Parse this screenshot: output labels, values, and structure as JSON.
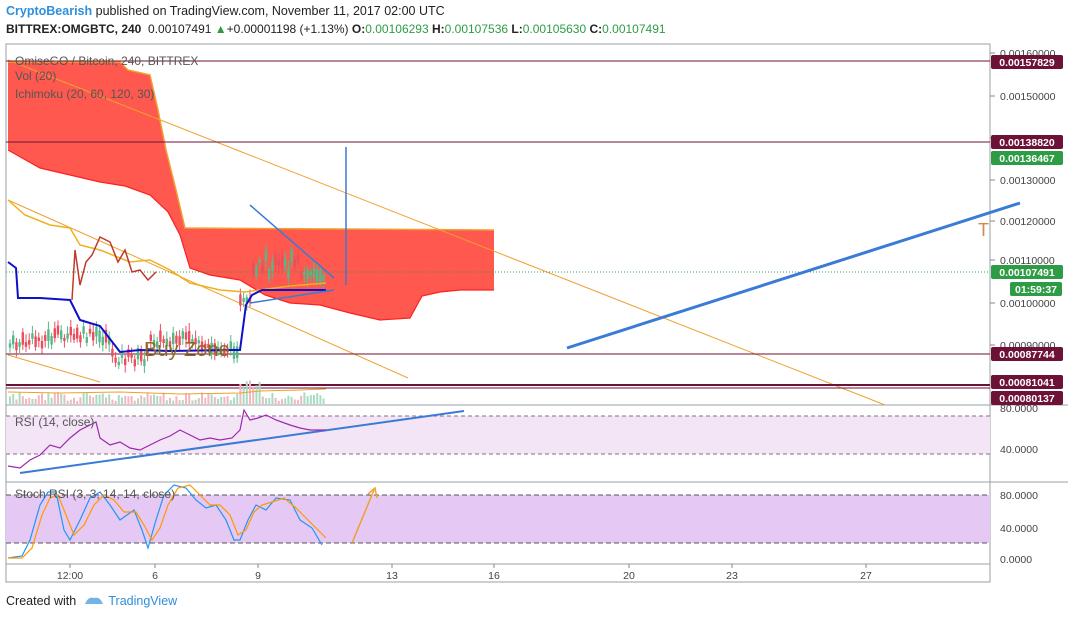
{
  "header": {
    "author": "CryptoBearish",
    "published_text": "published on TradingView.com, November 11, 2017 02:00 UTC",
    "symbol": "BITTREX:OMGBTC, 240",
    "last": "0.00107491",
    "change": "+0.00001198 (+1.13%)",
    "open_label": "O:",
    "open": "0.00106293",
    "high_label": "H:",
    "high": "0.00107536",
    "low_label": "L:",
    "low": "0.00105630",
    "close_label": "C:",
    "close": "0.00107491"
  },
  "legend": {
    "title": "OmiseGO / Bitcoin, 240, BITTREX",
    "vol": "Vol (20)",
    "ichimoku": "Ichimoku (20, 60, 120, 30)",
    "rsi": "RSI (14, close)",
    "stoch": "Stoch RSI (3, 3, 14, 14, close)"
  },
  "annotations": {
    "buy_zone": "Buy Zone",
    "edge_letter": "T"
  },
  "footer": {
    "created_with": "Created with",
    "brand": "TradingView"
  },
  "colors": {
    "cloud": "#ff3b30",
    "kijun": "#1010c8",
    "tenkan": "#f0b020",
    "chikou": "#c0392b",
    "trend": "#3a7bd5",
    "channel": "#f0a030",
    "level": "#6d1236",
    "up_candle": "#53b987",
    "down_candle": "#eb4d5c",
    "rsi_line": "#9c27b0",
    "stoch_k": "#2196f3",
    "stoch_d": "#ff9800"
  },
  "chart_data": [
    {
      "type": "candlestick",
      "title": "OmiseGO / Bitcoin, 240, BITTREX",
      "x_ticks": [
        "12:00",
        "6",
        "9",
        "13",
        "16",
        "20",
        "23",
        "27"
      ],
      "y_ticks": [
        "0.00160000",
        "0.00150000",
        "0.00140000",
        "0.00130000",
        "0.00120000",
        "0.00110000",
        "0.00100000",
        "0.00090000"
      ],
      "ylim": [
        0.00078,
        0.00161
      ],
      "price_labels": [
        {
          "value": "0.00157829",
          "kind": "level"
        },
        {
          "value": "0.00138820",
          "kind": "level"
        },
        {
          "value": "0.00136467",
          "kind": "ichimoku"
        },
        {
          "value": "0.00107491",
          "kind": "last"
        },
        {
          "value": "01:59:37",
          "kind": "countdown"
        },
        {
          "value": "0.00087744",
          "kind": "level"
        },
        {
          "value": "0.00081041",
          "kind": "level"
        },
        {
          "value": "0.00080137",
          "kind": "level"
        }
      ],
      "horizontal_levels": [
        0.00157829,
        0.0013882,
        0.00087744,
        0.00081041,
        0.00080137
      ],
      "last_price": 0.00107491
    },
    {
      "type": "line",
      "title": "RSI (14, close)",
      "y_ticks": [
        "80.0000",
        "40.0000"
      ],
      "ylim": [
        15,
        85
      ],
      "band": [
        70,
        30
      ]
    },
    {
      "type": "line",
      "title": "Stoch RSI (3, 3, 14, 14, close)",
      "y_ticks": [
        "80.0000",
        "40.0000",
        "0.0000"
      ],
      "ylim": [
        -8,
        100
      ],
      "band": [
        80,
        20
      ]
    }
  ]
}
